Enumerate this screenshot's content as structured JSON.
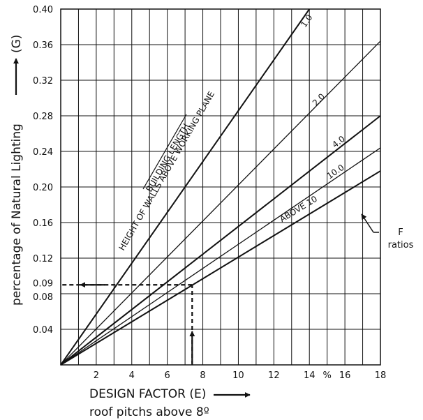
{
  "chart_data": {
    "type": "line",
    "xlabel": "DESIGN FACTOR (E)",
    "xlabel_sub": "roof pitchs above 8º",
    "x_unit": "%",
    "ylabel": "percentage of Natural Lighting",
    "ylabel_symbol": "(G)",
    "xlim": [
      0,
      18
    ],
    "ylim": [
      0,
      0.4
    ],
    "x_ticks": [
      2,
      4,
      6,
      8,
      10,
      12,
      14,
      16,
      18
    ],
    "y_ticks": [
      0.04,
      0.08,
      0.09,
      0.12,
      0.16,
      0.2,
      0.24,
      0.28,
      0.32,
      0.36,
      0.4
    ],
    "y_tick_labels": [
      "0.04",
      "0.08",
      "0.09",
      "0.12",
      "0.16",
      "0.20",
      "0.24",
      "0.28",
      "0.32",
      "0.36",
      "0.40"
    ],
    "grid": true,
    "annotation_ratio_line1": "BUILDING LENGTH",
    "annotation_ratio_line2": "HEIGHT OF WALLS ABOVE WORKING PLANE",
    "ratio_callout_line1": "F",
    "ratio_callout_line2": "ratios",
    "series": [
      {
        "name": "1.0",
        "x": [
          0,
          14
        ],
        "y": [
          0,
          0.4
        ]
      },
      {
        "name": "2.0",
        "x": [
          0,
          18
        ],
        "y": [
          0,
          0.364
        ]
      },
      {
        "name": "4.0",
        "x": [
          0,
          18
        ],
        "y": [
          0,
          0.28
        ]
      },
      {
        "name": "10.0",
        "x": [
          0,
          18
        ],
        "y": [
          0,
          0.244
        ]
      },
      {
        "name": "ABOVE 10",
        "x": [
          0,
          18
        ],
        "y": [
          0,
          0.218
        ]
      }
    ],
    "example_reading": {
      "x": 7.4,
      "y": 0.09
    }
  }
}
